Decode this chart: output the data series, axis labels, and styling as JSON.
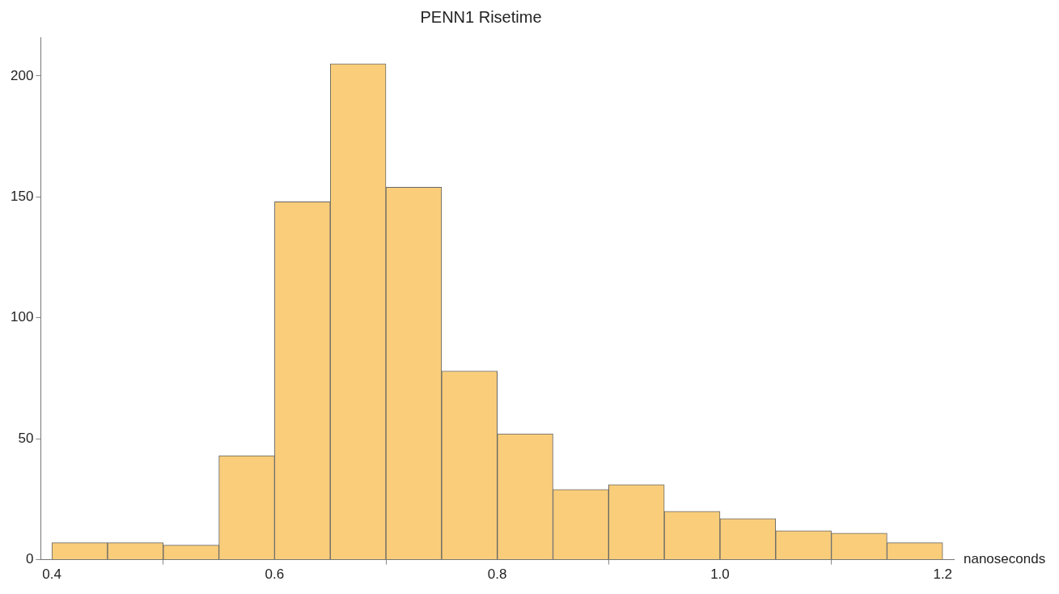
{
  "chart_data": {
    "type": "histogram",
    "title": "PENN1 Risetime",
    "xlabel": "nanoseconds",
    "bins": [
      0.4,
      0.45,
      0.5,
      0.55,
      0.6,
      0.65,
      0.7,
      0.75,
      0.8,
      0.85,
      0.9,
      0.95,
      1.0,
      1.05,
      1.1,
      1.15,
      1.2
    ],
    "values": [
      7,
      7,
      6,
      43,
      148,
      205,
      154,
      78,
      52,
      29,
      31,
      20,
      17,
      12,
      11,
      7
    ],
    "color": "#f9cd7a",
    "xlim": [
      0.39,
      1.21
    ],
    "xticks": [
      0.4,
      0.6,
      0.8,
      {
        "value": 1.0,
        "label": "1.0"
      },
      1.2
    ],
    "ylim": [
      0,
      216
    ],
    "yticks": [
      0,
      50,
      100,
      150,
      200
    ],
    "grid": false
  }
}
